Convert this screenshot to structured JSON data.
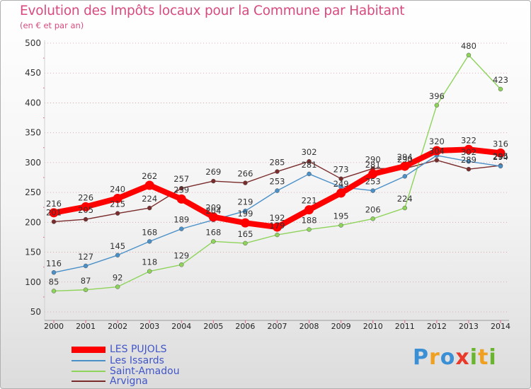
{
  "header": {
    "title": "Evolution des Impôts locaux pour la Commune par Habitant",
    "subtitle": "(en € et par an)"
  },
  "logo_text": {
    "p": "P",
    "r": "r",
    "o": "o",
    "x": "x",
    "i1": "i",
    "t": "t",
    "i2": "i"
  },
  "chart_data": {
    "type": "line",
    "title": "Evolution des Impôts locaux pour la Commune par Habitant",
    "subtitle": "(en € et par an)",
    "xlabel": "",
    "ylabel": "",
    "x": [
      "2000",
      "2001",
      "2002",
      "2003",
      "2004",
      "2005",
      "2006",
      "2007",
      "2008",
      "2009",
      "2010",
      "2011",
      "2012",
      "2013",
      "2014"
    ],
    "ylim": [
      50,
      500
    ],
    "yticks": [
      50,
      100,
      150,
      200,
      250,
      300,
      350,
      400,
      450,
      500
    ],
    "grid": "horizontal dotted",
    "legend_position": "bottom-left",
    "series": [
      {
        "name": "LES PUJOLS",
        "color": "#ff0000",
        "emphasis": "thick",
        "values": [
          216,
          226,
          240,
          262,
          239,
          209,
          199,
          192,
          221,
          249,
          281,
          294,
          320,
          322,
          316
        ],
        "labels": [
          "216",
          "226",
          "240",
          "262",
          "239",
          "209",
          "199",
          "192",
          "221",
          "249",
          "281",
          "294",
          "320",
          "322",
          "316"
        ]
      },
      {
        "name": "Les Issards",
        "color": "#4a90c8",
        "emphasis": "normal",
        "values": [
          116,
          127,
          145,
          168,
          189,
          204,
          219,
          253,
          281,
          259,
          253,
          277,
          312,
          302,
          294
        ],
        "labels": [
          "116",
          "127",
          "145",
          "168",
          "189",
          "204",
          "219",
          "253",
          "281",
          "",
          "253",
          "",
          "",
          "302",
          "294"
        ]
      },
      {
        "name": "Saint-Amadou",
        "color": "#8ed35a",
        "emphasis": "normal",
        "values": [
          85,
          87,
          92,
          118,
          129,
          168,
          165,
          179,
          188,
          195,
          206,
          224,
          396,
          480,
          423
        ],
        "labels": [
          "85",
          "87",
          "92",
          "118",
          "129",
          "168",
          "165",
          "179",
          "188",
          "195",
          "206",
          "224",
          "396",
          "480",
          "423"
        ]
      },
      {
        "name": "Arvigna",
        "color": "#7a2b2b",
        "emphasis": "normal",
        "values": [
          201,
          205,
          215,
          224,
          257,
          269,
          266,
          285,
          302,
          273,
          290,
          290,
          304,
          289,
          295
        ],
        "labels": [
          "201",
          "205",
          "215",
          "224",
          "257",
          "269",
          "266",
          "285",
          "302",
          "273",
          "290",
          "290",
          "304",
          "289",
          "295"
        ]
      }
    ]
  }
}
